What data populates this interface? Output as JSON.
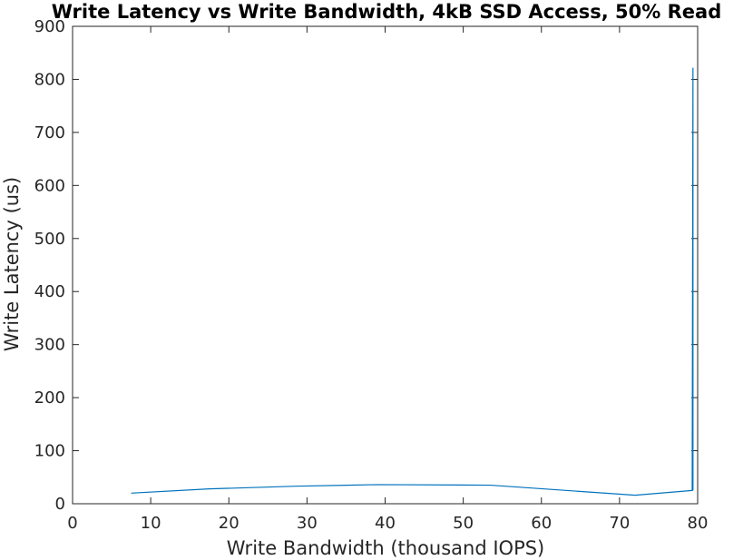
{
  "chart_data": {
    "type": "line",
    "title": "Write Latency vs Write Bandwidth, 4kB SSD Access, 50% Read",
    "xlabel": "Write Bandwidth (thousand IOPS)",
    "ylabel": "Write Latency (us)",
    "xlim": [
      0,
      80
    ],
    "ylim": [
      0,
      900
    ],
    "xticks": [
      "0",
      "10",
      "20",
      "30",
      "40",
      "50",
      "60",
      "70",
      "80"
    ],
    "yticks": [
      "0",
      "100",
      "200",
      "300",
      "400",
      "500",
      "600",
      "700",
      "800",
      "900"
    ],
    "grid": false,
    "series": [
      {
        "color": "#0072bd",
        "x": [
          7.5,
          17.5,
          28.5,
          39.0,
          53.5,
          72.0,
          79.3,
          79.4,
          79.4
        ],
        "y": [
          20,
          28,
          33,
          36,
          35,
          16,
          25,
          822,
          25
        ]
      }
    ]
  }
}
